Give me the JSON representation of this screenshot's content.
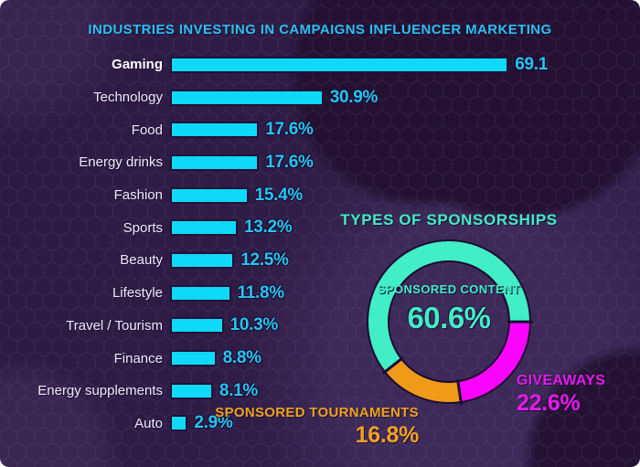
{
  "colors": {
    "background_base": "#2F1D46",
    "background_dark_blob": "#241132",
    "hex_line": "#8169C0",
    "bar_fill": "#0ED9F9",
    "bar_value_text": "#25C5F0",
    "title_text": "#2BC1F0",
    "category_text": "#EFEAFB",
    "mint": "#41EEC6",
    "magenta": "#FB04FD",
    "magenta_text": "#E41BEA",
    "orange": "#F09A1A",
    "orange_text": "#F0A21F",
    "outline": "#1D0C32"
  },
  "chart_data": [
    {
      "type": "bar",
      "orientation": "horizontal",
      "title": "INDUSTRIES INVESTING IN CAMPAIGNS INFLUENCER MARKETING",
      "categories": [
        "Gaming",
        "Technology",
        "Food",
        "Energy drinks",
        "Fashion",
        "Sports",
        "Beauty",
        "Lifestyle",
        "Travel / Tourism",
        "Finance",
        "Energy supplements",
        "Auto"
      ],
      "values": [
        69.1,
        30.9,
        17.6,
        17.6,
        15.4,
        13.2,
        12.5,
        11.8,
        10.3,
        8.8,
        8.1,
        2.9
      ],
      "value_labels": [
        "69.1",
        "30.9%",
        "17.6%",
        "17.6%",
        "15.4%",
        "13.2%",
        "12.5%",
        "11.8%",
        "10.3%",
        "8.8%",
        "8.1%",
        "2.9%"
      ],
      "xlim": [
        0,
        75
      ],
      "grid": false,
      "emphasis_index": 0,
      "bar_color": "#0ED9F9",
      "value_color": "#25C5F0"
    },
    {
      "type": "pie",
      "subtype": "donut",
      "title": "TYPES OF SPONSORSHIPS",
      "start_angle_from_top_deg": 231.9,
      "direction": "clockwise",
      "slices": [
        {
          "label": "SPONSORED CONTENT",
          "value": 60.6,
          "value_label": "60.6%",
          "color": "#41EEC6",
          "text_color": "#41EEC6"
        },
        {
          "label": "GIVEAWAYS",
          "value": 22.6,
          "value_label": "22.6%",
          "color": "#FB04FD",
          "text_color": "#E41BEA"
        },
        {
          "label": "SPONSORED TOURNAMENTS",
          "value": 16.8,
          "value_label": "16.8%",
          "color": "#F09A1A",
          "text_color": "#F0A21F"
        }
      ]
    }
  ]
}
